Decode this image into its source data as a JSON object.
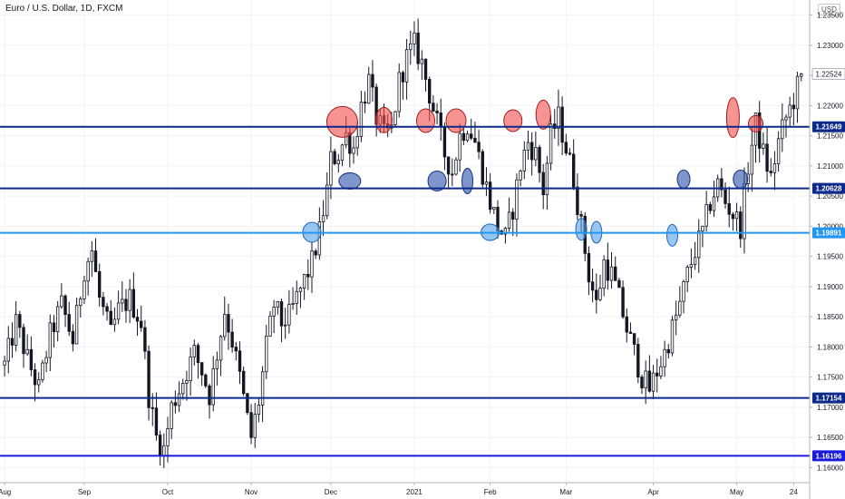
{
  "header": {
    "title": "Euro / U.S. Dollar, 1D, FXCM",
    "currency": "USD"
  },
  "chart_data": {
    "type": "candlestick",
    "symbol": "Euro / U.S. Dollar",
    "interval": "1D",
    "source": "FXCM",
    "currency": "USD",
    "ylim": [
      1.1575,
      1.2375
    ],
    "price_ticks": [
      "1.23500",
      "1.23000",
      "1.22500",
      "1.22000",
      "1.21500",
      "1.21000",
      "1.20500",
      "1.20000",
      "1.19500",
      "1.19000",
      "1.18500",
      "1.18000",
      "1.17500",
      "1.17000",
      "1.16500",
      "1.16000"
    ],
    "time_labels": [
      {
        "label": "Aug",
        "index": 0
      },
      {
        "label": "Sep",
        "index": 21
      },
      {
        "label": "Oct",
        "index": 43
      },
      {
        "label": "Nov",
        "index": 65
      },
      {
        "label": "Dec",
        "index": 86
      },
      {
        "label": "2021",
        "index": 108
      },
      {
        "label": "Feb",
        "index": 128
      },
      {
        "label": "Mar",
        "index": 148
      },
      {
        "label": "Apr",
        "index": 171
      },
      {
        "label": "May",
        "index": 193
      },
      {
        "label": "24",
        "index": 208
      }
    ],
    "levels": [
      {
        "value": 1.21649,
        "label": "1.21649",
        "color": "#0d2a8a"
      },
      {
        "value": 1.20628,
        "label": "1.20628",
        "color": "#0d2a8a"
      },
      {
        "value": 1.19891,
        "label": "1.19891",
        "color": "#2196f3"
      },
      {
        "value": 1.17154,
        "label": "1.17154",
        "color": "#0d2a8a"
      },
      {
        "value": 1.16196,
        "label": "1.16196",
        "color": "#1a1adf"
      }
    ],
    "last_price": {
      "value": 1.22524,
      "label": "1.22524"
    },
    "close_path": [
      [
        0,
        1.177
      ],
      [
        3,
        1.184
      ],
      [
        6,
        1.178
      ],
      [
        9,
        1.173
      ],
      [
        12,
        1.182
      ],
      [
        15,
        1.187
      ],
      [
        18,
        1.181
      ],
      [
        21,
        1.193
      ],
      [
        23,
        1.196
      ],
      [
        25,
        1.188
      ],
      [
        28,
        1.182
      ],
      [
        30,
        1.186
      ],
      [
        33,
        1.188
      ],
      [
        36,
        1.184
      ],
      [
        38,
        1.172
      ],
      [
        40,
        1.165
      ],
      [
        42,
        1.163
      ],
      [
        44,
        1.17
      ],
      [
        46,
        1.173
      ],
      [
        48,
        1.176
      ],
      [
        50,
        1.179
      ],
      [
        52,
        1.176
      ],
      [
        54,
        1.172
      ],
      [
        56,
        1.179
      ],
      [
        58,
        1.186
      ],
      [
        60,
        1.181
      ],
      [
        62,
        1.175
      ],
      [
        64,
        1.168
      ],
      [
        65,
        1.165
      ],
      [
        67,
        1.171
      ],
      [
        69,
        1.18
      ],
      [
        71,
        1.187
      ],
      [
        73,
        1.184
      ],
      [
        75,
        1.185
      ],
      [
        77,
        1.188
      ],
      [
        79,
        1.191
      ],
      [
        81,
        1.194
      ],
      [
        83,
        1.199
      ],
      [
        85,
        1.206
      ],
      [
        86,
        1.211
      ],
      [
        88,
        1.212
      ],
      [
        90,
        1.215
      ],
      [
        92,
        1.213
      ],
      [
        94,
        1.22
      ],
      [
        96,
        1.224
      ],
      [
        98,
        1.218
      ],
      [
        100,
        1.215
      ],
      [
        102,
        1.216
      ],
      [
        104,
        1.224
      ],
      [
        106,
        1.228
      ],
      [
        108,
        1.23
      ],
      [
        110,
        1.227
      ],
      [
        112,
        1.222
      ],
      [
        114,
        1.217
      ],
      [
        116,
        1.212
      ],
      [
        118,
        1.209
      ],
      [
        120,
        1.215
      ],
      [
        122,
        1.217
      ],
      [
        124,
        1.214
      ],
      [
        126,
        1.209
      ],
      [
        128,
        1.204
      ],
      [
        130,
        1.2
      ],
      [
        132,
        1.198
      ],
      [
        134,
        1.203
      ],
      [
        136,
        1.21
      ],
      [
        138,
        1.214
      ],
      [
        140,
        1.212
      ],
      [
        142,
        1.206
      ],
      [
        144,
        1.215
      ],
      [
        146,
        1.218
      ],
      [
        148,
        1.213
      ],
      [
        150,
        1.208
      ],
      [
        152,
        1.2
      ],
      [
        154,
        1.192
      ],
      [
        156,
        1.187
      ],
      [
        158,
        1.194
      ],
      [
        160,
        1.192
      ],
      [
        162,
        1.188
      ],
      [
        164,
        1.183
      ],
      [
        166,
        1.179
      ],
      [
        168,
        1.175
      ],
      [
        170,
        1.173
      ],
      [
        172,
        1.176
      ],
      [
        174,
        1.179
      ],
      [
        176,
        1.183
      ],
      [
        178,
        1.187
      ],
      [
        180,
        1.192
      ],
      [
        182,
        1.196
      ],
      [
        184,
        1.199
      ],
      [
        186,
        1.204
      ],
      [
        188,
        1.207
      ],
      [
        190,
        1.204
      ],
      [
        192,
        1.202
      ],
      [
        194,
        1.2
      ],
      [
        196,
        1.21
      ],
      [
        198,
        1.217
      ],
      [
        200,
        1.212
      ],
      [
        202,
        1.208
      ],
      [
        204,
        1.214
      ],
      [
        206,
        1.218
      ],
      [
        208,
        1.221
      ],
      [
        210,
        1.2252
      ]
    ],
    "circles": [
      {
        "i": 81,
        "price": 1.199,
        "rx": 10,
        "ry": 11,
        "kind": "light-blue"
      },
      {
        "i": 89,
        "price": 1.2173,
        "rx": 17,
        "ry": 17,
        "kind": "red"
      },
      {
        "i": 91,
        "price": 1.2075,
        "rx": 12,
        "ry": 9,
        "kind": "blue"
      },
      {
        "i": 100,
        "price": 1.2176,
        "rx": 9,
        "ry": 14,
        "kind": "red"
      },
      {
        "i": 111,
        "price": 1.2175,
        "rx": 10,
        "ry": 13,
        "kind": "red"
      },
      {
        "i": 114,
        "price": 1.2075,
        "rx": 10,
        "ry": 11,
        "kind": "blue"
      },
      {
        "i": 119,
        "price": 1.2175,
        "rx": 11,
        "ry": 13,
        "kind": "red"
      },
      {
        "i": 122,
        "price": 1.2075,
        "rx": 6,
        "ry": 14,
        "kind": "blue"
      },
      {
        "i": 128,
        "price": 1.199,
        "rx": 10,
        "ry": 9,
        "kind": "light-blue"
      },
      {
        "i": 134,
        "price": 1.2175,
        "rx": 10,
        "ry": 12,
        "kind": "red"
      },
      {
        "i": 142,
        "price": 1.2185,
        "rx": 8,
        "ry": 16,
        "kind": "red"
      },
      {
        "i": 152,
        "price": 1.1995,
        "rx": 6,
        "ry": 12,
        "kind": "light-blue"
      },
      {
        "i": 156,
        "price": 1.199,
        "rx": 6,
        "ry": 12,
        "kind": "light-blue"
      },
      {
        "i": 176,
        "price": 1.1985,
        "rx": 6,
        "ry": 12,
        "kind": "light-blue"
      },
      {
        "i": 179,
        "price": 1.2078,
        "rx": 7,
        "ry": 10,
        "kind": "blue"
      },
      {
        "i": 192,
        "price": 1.218,
        "rx": 7,
        "ry": 22,
        "kind": "red"
      },
      {
        "i": 194,
        "price": 1.2078,
        "rx": 8,
        "ry": 10,
        "kind": "blue"
      },
      {
        "i": 198,
        "price": 1.217,
        "rx": 8,
        "ry": 9,
        "kind": "red"
      }
    ]
  }
}
